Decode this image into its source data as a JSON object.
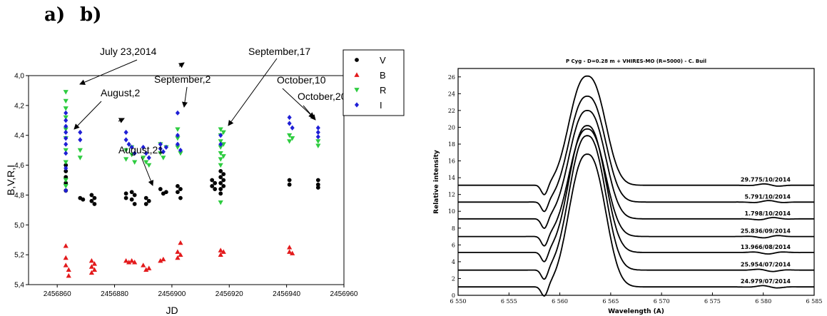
{
  "labels": {
    "a": "a)",
    "b": "b)"
  },
  "chart_data": [
    {
      "type": "scatter",
      "xlabel": "JD",
      "ylabel": "B,V,R,I",
      "xlim": [
        2456850,
        2456960
      ],
      "ylim": [
        5.4,
        4.0
      ],
      "y_inverted": true,
      "x_ticks": [
        2456860,
        2456880,
        2456900,
        2456920,
        2456940,
        2456960
      ],
      "y_ticks": [
        4.0,
        4.2,
        4.4,
        4.6,
        4.8,
        5.0,
        5.2,
        5.4
      ],
      "legend": {
        "placement": "top-right",
        "entries": [
          {
            "name": "V",
            "color": "#000000",
            "marker": "circle"
          },
          {
            "name": "B",
            "color": "#e31a1c",
            "marker": "triangle-up"
          },
          {
            "name": "R",
            "color": "#2ecc40",
            "marker": "triangle-down"
          },
          {
            "name": "I",
            "color": "#1f1fd6",
            "marker": "diamond"
          }
        ]
      },
      "series": [
        {
          "name": "V",
          "points": [
            [
              2456863,
              4.6
            ],
            [
              2456863,
              4.64
            ],
            [
              2456863,
              4.68
            ],
            [
              2456863,
              4.72
            ],
            [
              2456863,
              4.77
            ],
            [
              2456868,
              4.82
            ],
            [
              2456869,
              4.83
            ],
            [
              2456872,
              4.8
            ],
            [
              2456872,
              4.84
            ],
            [
              2456873,
              4.82
            ],
            [
              2456873,
              4.86
            ],
            [
              2456884,
              4.79
            ],
            [
              2456884,
              4.82
            ],
            [
              2456886,
              4.78
            ],
            [
              2456886,
              4.83
            ],
            [
              2456887,
              4.8
            ],
            [
              2456887,
              4.86
            ],
            [
              2456891,
              4.82
            ],
            [
              2456891,
              4.86
            ],
            [
              2456892,
              4.84
            ],
            [
              2456896,
              4.76
            ],
            [
              2456897,
              4.79
            ],
            [
              2456898,
              4.78
            ],
            [
              2456902,
              4.74
            ],
            [
              2456902,
              4.78
            ],
            [
              2456903,
              4.76
            ],
            [
              2456903,
              4.82
            ],
            [
              2456914,
              4.7
            ],
            [
              2456914,
              4.74
            ],
            [
              2456915,
              4.72
            ],
            [
              2456915,
              4.76
            ],
            [
              2456917,
              4.64
            ],
            [
              2456917,
              4.68
            ],
            [
              2456917,
              4.72
            ],
            [
              2456917,
              4.76
            ],
            [
              2456917,
              4.79
            ],
            [
              2456918,
              4.66
            ],
            [
              2456918,
              4.7
            ],
            [
              2456918,
              4.74
            ],
            [
              2456941,
              4.7
            ],
            [
              2456941,
              4.73
            ],
            [
              2456951,
              4.7
            ],
            [
              2456951,
              4.73
            ],
            [
              2456951,
              4.75
            ]
          ]
        },
        {
          "name": "B",
          "points": [
            [
              2456863,
              5.14
            ],
            [
              2456863,
              5.22
            ],
            [
              2456863,
              5.27
            ],
            [
              2456864,
              5.3
            ],
            [
              2456864,
              5.34
            ],
            [
              2456872,
              5.24
            ],
            [
              2456872,
              5.28
            ],
            [
              2456872,
              5.32
            ],
            [
              2456873,
              5.26
            ],
            [
              2456873,
              5.3
            ],
            [
              2456884,
              5.24
            ],
            [
              2456885,
              5.25
            ],
            [
              2456886,
              5.24
            ],
            [
              2456887,
              5.25
            ],
            [
              2456890,
              5.27
            ],
            [
              2456891,
              5.3
            ],
            [
              2456892,
              5.29
            ],
            [
              2456896,
              5.24
            ],
            [
              2456897,
              5.23
            ],
            [
              2456902,
              5.18
            ],
            [
              2456902,
              5.22
            ],
            [
              2456903,
              5.12
            ],
            [
              2456903,
              5.2
            ],
            [
              2456917,
              5.17
            ],
            [
              2456917,
              5.2
            ],
            [
              2456918,
              5.18
            ],
            [
              2456941,
              5.15
            ],
            [
              2456941,
              5.18
            ],
            [
              2456942,
              5.19
            ]
          ]
        },
        {
          "name": "R",
          "points": [
            [
              2456863,
              4.11
            ],
            [
              2456863,
              4.17
            ],
            [
              2456863,
              4.22
            ],
            [
              2456863,
              4.28
            ],
            [
              2456863,
              4.36
            ],
            [
              2456863,
              4.42
            ],
            [
              2456863,
              4.5
            ],
            [
              2456863,
              4.58
            ],
            [
              2456863,
              4.7
            ],
            [
              2456863,
              4.74
            ],
            [
              2456868,
              4.5
            ],
            [
              2456868,
              4.55
            ],
            [
              2456884,
              4.5
            ],
            [
              2456884,
              4.56
            ],
            [
              2456886,
              4.48
            ],
            [
              2456886,
              4.53
            ],
            [
              2456887,
              4.58
            ],
            [
              2456890,
              4.55
            ],
            [
              2456891,
              4.58
            ],
            [
              2456892,
              4.6
            ],
            [
              2456896,
              4.46
            ],
            [
              2456896,
              4.52
            ],
            [
              2456897,
              4.55
            ],
            [
              2456898,
              4.48
            ],
            [
              2456902,
              4.36
            ],
            [
              2456902,
              4.42
            ],
            [
              2456902,
              4.48
            ],
            [
              2456903,
              4.52
            ],
            [
              2456917,
              4.36
            ],
            [
              2456917,
              4.4
            ],
            [
              2456917,
              4.44
            ],
            [
              2456917,
              4.48
            ],
            [
              2456917,
              4.52
            ],
            [
              2456917,
              4.56
            ],
            [
              2456917,
              4.6
            ],
            [
              2456917,
              4.85
            ],
            [
              2456918,
              4.38
            ],
            [
              2456918,
              4.46
            ],
            [
              2456918,
              4.54
            ],
            [
              2456941,
              4.4
            ],
            [
              2456941,
              4.44
            ],
            [
              2456942,
              4.42
            ],
            [
              2456951,
              4.44
            ],
            [
              2456951,
              4.47
            ]
          ]
        },
        {
          "name": "I",
          "points": [
            [
              2456863,
              4.25
            ],
            [
              2456863,
              4.3
            ],
            [
              2456863,
              4.34
            ],
            [
              2456863,
              4.38
            ],
            [
              2456863,
              4.42
            ],
            [
              2456863,
              4.46
            ],
            [
              2456863,
              4.52
            ],
            [
              2456863,
              4.62
            ],
            [
              2456863,
              4.77
            ],
            [
              2456868,
              4.38
            ],
            [
              2456868,
              4.43
            ],
            [
              2456884,
              4.38
            ],
            [
              2456884,
              4.43
            ],
            [
              2456885,
              4.46
            ],
            [
              2456886,
              4.48
            ],
            [
              2456887,
              4.52
            ],
            [
              2456890,
              4.48
            ],
            [
              2456891,
              4.52
            ],
            [
              2456892,
              4.55
            ],
            [
              2456896,
              4.46
            ],
            [
              2456896,
              4.49
            ],
            [
              2456897,
              4.51
            ],
            [
              2456898,
              4.48
            ],
            [
              2456902,
              4.25
            ],
            [
              2456902,
              4.4
            ],
            [
              2456902,
              4.46
            ],
            [
              2456903,
              4.5
            ],
            [
              2456917,
              4.4
            ],
            [
              2456917,
              4.46
            ],
            [
              2456941,
              4.28
            ],
            [
              2456941,
              4.32
            ],
            [
              2456942,
              4.35
            ],
            [
              2456951,
              4.35
            ],
            [
              2456951,
              4.38
            ],
            [
              2456951,
              4.41
            ]
          ]
        }
      ],
      "annotations": [
        {
          "text": "July 23,2014"
        },
        {
          "text": "August,2"
        },
        {
          "text": "August,21"
        },
        {
          "text": "September,2"
        },
        {
          "text": "September,17"
        },
        {
          "text": "October,10"
        },
        {
          "text": "October,20"
        }
      ]
    },
    {
      "type": "line",
      "title": "P Cyg - D=0.28 m + VHIRES-MO (R=5000) - C. Buil",
      "xlabel": "Wavelength (A)",
      "ylabel": "Relative intensity",
      "xlim": [
        6550,
        6585
      ],
      "ylim": [
        0,
        27
      ],
      "x_ticks": [
        6550,
        6555,
        6560,
        6565,
        6570,
        6575,
        6580,
        6585
      ],
      "x_tick_labels": [
        "6 550",
        "6 555",
        "6 560",
        "6 565",
        "6 570",
        "6 575",
        "6 580",
        "6 585"
      ],
      "y_ticks": [
        0,
        2,
        4,
        6,
        8,
        10,
        12,
        14,
        16,
        18,
        20,
        22,
        24,
        26
      ],
      "profile": {
        "center": 6562.7,
        "absorption_center": 6558.5
      },
      "series": [
        {
          "name": "24.979/07/2014",
          "continuum": 1.0,
          "peak": 16.8
        },
        {
          "name": "25.954/07/2014",
          "continuum": 3.0,
          "peak": 19.0
        },
        {
          "name": "13.966/08/2014",
          "continuum": 5.1,
          "peak": 20.2
        },
        {
          "name": "25.836/09/2014",
          "continuum": 7.0,
          "peak": 19.8
        },
        {
          "name": "1.798/10/2014",
          "continuum": 9.1,
          "peak": 22.0
        },
        {
          "name": "5.791/10/2014",
          "continuum": 11.1,
          "peak": 23.7
        },
        {
          "name": "29.775/10/2014",
          "continuum": 13.1,
          "peak": 26.1
        }
      ]
    }
  ]
}
